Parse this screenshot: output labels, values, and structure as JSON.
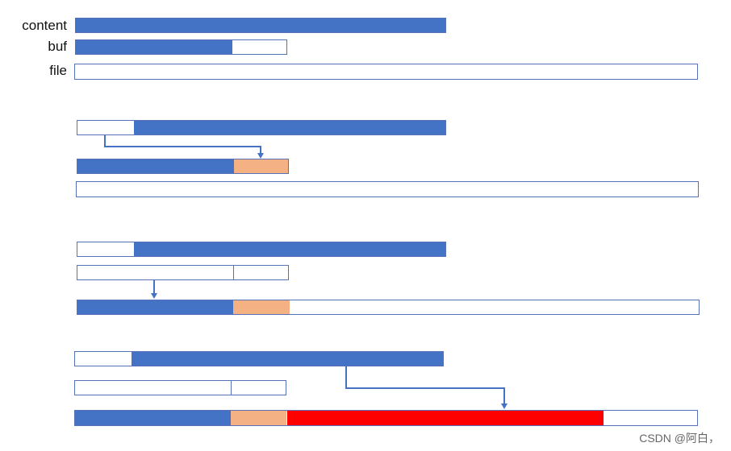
{
  "labels": {
    "content": "content",
    "buf": "buf",
    "file": "file"
  },
  "watermark": "CSDN @阿白，",
  "colors": {
    "content": "#4472c4",
    "copied": "#f4b183",
    "direct_write": "#ff0000",
    "outline": "#5572b8",
    "arrow": "#4472c4"
  }
}
